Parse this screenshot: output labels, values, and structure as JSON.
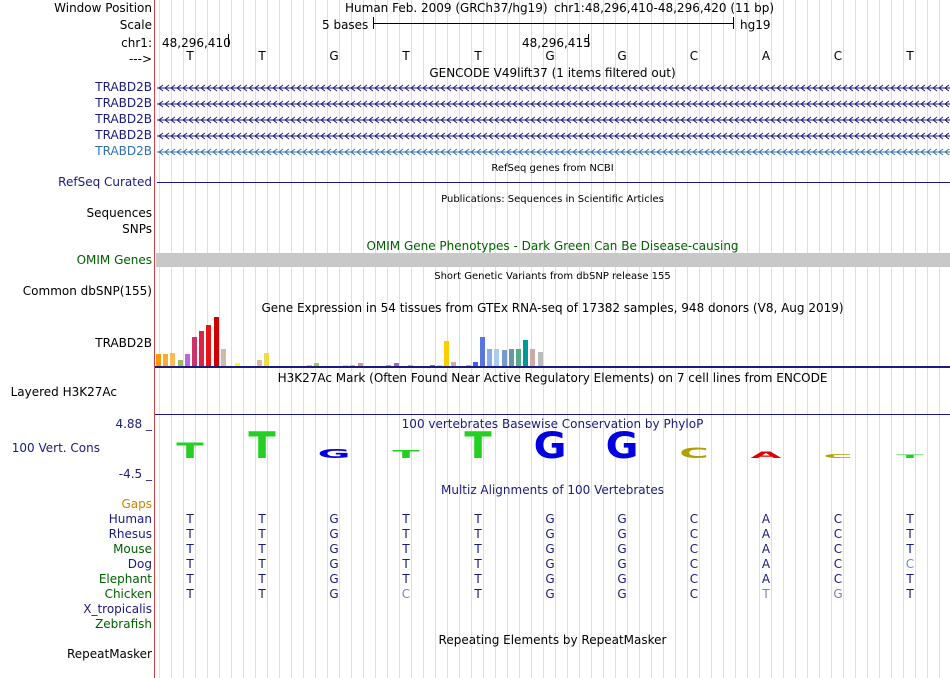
{
  "labels": {
    "window_position": "Window Position",
    "scale": "Scale",
    "chr": "chr1:",
    "arrow": "--->",
    "gencode_tracks": [
      "TRABD2B",
      "TRABD2B",
      "TRABD2B",
      "TRABD2B",
      "TRABD2B"
    ],
    "refseq": "RefSeq Curated",
    "sequences": "Sequences",
    "snps": "SNPs",
    "omim": "OMIM Genes",
    "dbsnp": "Common dbSNP(155)",
    "gtex": "TRABD2B",
    "h3k27ac": "Layered H3K27Ac",
    "cons_max": "4.88 _",
    "cons_label": "100 Vert. Cons",
    "cons_min": "-4.5 _",
    "gaps": "Gaps",
    "species": [
      "Human",
      "Rhesus",
      "Mouse",
      "Dog",
      "Elephant",
      "Chicken",
      "X_tropicalis",
      "Zebrafish"
    ],
    "repeatmasker": "RepeatMasker"
  },
  "ruler": {
    "assembly": "Human Feb. 2009 (GRCh37/hg19)",
    "position": "chr1:48,296,410-48,296,420 (11 bp)",
    "scale_text": "5 bases",
    "db": "hg19",
    "pos1": "48,296,410",
    "pos2": "48,296,415"
  },
  "bases": [
    "T",
    "T",
    "G",
    "T",
    "T",
    "G",
    "G",
    "C",
    "A",
    "C",
    "T"
  ],
  "tracks": {
    "gencode": "GENCODE V49lift37 (1 items filtered out)",
    "refseq": "RefSeq genes from NCBI",
    "publications": "Publications: Sequences in Scientific Articles",
    "omim": "OMIM Gene Phenotypes - Dark Green Can Be Disease-causing",
    "dbsnp": "Short Genetic Variants from dbSNP release 155",
    "gtex": "Gene Expression in 54 tissues from GTEx RNA-seq of 17382 samples, 948 donors (V8, Aug 2019)",
    "h3k27ac": "H3K27Ac Mark (Often Found Near Active Regulatory Elements) on 7 cell lines from ENCODE",
    "phylop": "100 vertebrates Basewise Conservation by PhyloP",
    "multiz": "Multiz Alignments of 100 Vertebrates",
    "repeats": "Repeating Elements by RepeatMasker"
  },
  "alignment": [
    [
      "T",
      "T",
      "G",
      "T",
      "T",
      "G",
      "G",
      "C",
      "A",
      "C",
      "T"
    ],
    [
      "T",
      "T",
      "G",
      "T",
      "T",
      "G",
      "G",
      "C",
      "A",
      "C",
      "T"
    ],
    [
      "T",
      "T",
      "G",
      "T",
      "T",
      "G",
      "G",
      "C",
      "A",
      "C",
      "T"
    ],
    [
      "T",
      "T",
      "G",
      "T",
      "T",
      "G",
      "G",
      "C",
      "A",
      "C",
      "C"
    ],
    [
      "T",
      "T",
      "G",
      "T",
      "T",
      "G",
      "G",
      "C",
      "A",
      "C",
      "T"
    ],
    [
      "T",
      "T",
      "G",
      "C",
      "T",
      "G",
      "G",
      "C",
      "T",
      "G",
      "T"
    ]
  ],
  "colors": {
    "track_label": "#1a1a80",
    "omim_green": "#006000",
    "gaps_orange": "#d08000",
    "mismatch": "#8080c0",
    "cons_T": "#22d022",
    "cons_G": "#0000e0",
    "cons_C": "#b0a000",
    "cons_A": "#e00000"
  },
  "phylop_scores": [
    2.0,
    3.4,
    1.2,
    1.0,
    3.4,
    3.4,
    3.4,
    1.3,
    0.8,
    0.5,
    0.1
  ],
  "gtex_values": [
    8,
    8,
    9,
    4,
    8,
    20,
    24,
    28,
    34,
    12,
    0,
    2,
    0,
    0,
    4,
    9,
    0,
    0,
    0,
    0,
    0,
    1,
    2,
    0,
    0,
    0,
    1,
    1,
    2,
    0,
    0,
    0,
    1,
    2,
    0,
    1,
    0,
    0,
    1,
    1,
    17,
    3,
    0,
    1,
    3,
    20,
    12,
    12,
    11,
    12,
    12,
    18,
    12,
    10
  ]
}
